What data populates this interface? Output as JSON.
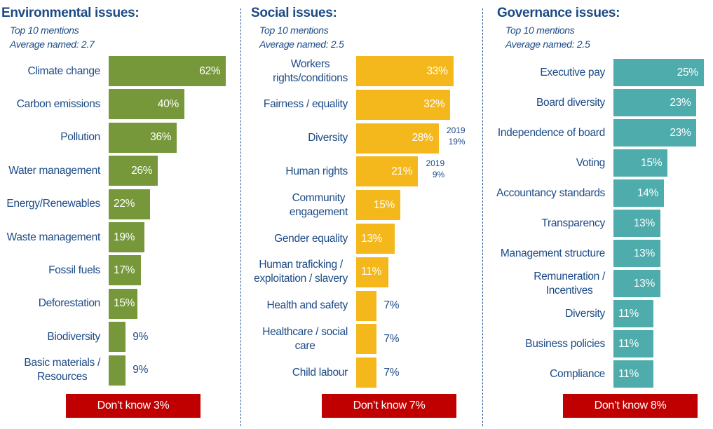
{
  "chart_data": [
    {
      "type": "bar",
      "orientation": "horizontal",
      "title": "Environmental issues:",
      "subtitle_lines": [
        "Top 10 mentions",
        "Average named: 2.7"
      ],
      "color": "#76983a",
      "categories": [
        "Climate change",
        "Carbon emissions",
        "Pollution",
        "Water management",
        "Energy/Renewables",
        "Waste management",
        "Fossil fuels",
        "Deforestation",
        "Biodiversity",
        "Basic materials / Resources"
      ],
      "label_lines": [
        [
          "Climate change"
        ],
        [
          "Carbon emissions"
        ],
        [
          "Pollution"
        ],
        [
          "Water management"
        ],
        [
          "Energy/Renewables"
        ],
        [
          "Waste management"
        ],
        [
          "Fossil fuels"
        ],
        [
          "Deforestation"
        ],
        [
          "Biodiversity"
        ],
        [
          "Basic materials /",
          "Resources"
        ]
      ],
      "values": [
        62,
        40,
        36,
        26,
        22,
        19,
        17,
        15,
        9,
        9
      ],
      "value_labels": [
        "62%",
        "40%",
        "36%",
        "26%",
        "22%",
        "19%",
        "17%",
        "15%",
        "9%",
        "9%"
      ],
      "notes": [
        null,
        null,
        null,
        null,
        null,
        null,
        null,
        null,
        null,
        null
      ],
      "dont_know": "Don’t know 3%",
      "unit": "%"
    },
    {
      "type": "bar",
      "orientation": "horizontal",
      "title": "Social issues:",
      "subtitle_lines": [
        "Top 10 mentions",
        "Average named: 2.5"
      ],
      "color": "#f5b81c",
      "categories": [
        "Workers rights/conditions",
        "Fairness / equality",
        "Diversity",
        "Human rights",
        "Community engagement",
        "Gender equality",
        "Human traficking / exploitation / slavery",
        "Health and safety",
        "Healthcare / social care",
        "Child labour"
      ],
      "label_lines": [
        [
          "Workers",
          "rights/conditions"
        ],
        [
          "Fairness / equality"
        ],
        [
          "Diversity"
        ],
        [
          "Human rights"
        ],
        [
          "Community",
          "engagement"
        ],
        [
          "Gender equality"
        ],
        [
          "Human traficking /",
          "exploitation / slavery"
        ],
        [
          "Health and safety"
        ],
        [
          "Healthcare / social",
          "care"
        ],
        [
          "Child labour"
        ]
      ],
      "values": [
        33,
        32,
        28,
        21,
        15,
        13,
        11,
        7,
        7,
        7
      ],
      "value_labels": [
        "33%",
        "32%",
        "28%",
        "21%",
        "15%",
        "13%",
        "11%",
        "7%",
        "7%",
        "7%"
      ],
      "notes": [
        null,
        null,
        [
          "2019",
          "19%"
        ],
        [
          "2019",
          "9%"
        ],
        null,
        null,
        null,
        null,
        null,
        null
      ],
      "dont_know": "Don’t know 7%",
      "unit": "%"
    },
    {
      "type": "bar",
      "orientation": "horizontal",
      "title": "Governance issues:",
      "subtitle_lines": [
        "Top 10 mentions",
        "Average named: 2.5"
      ],
      "color": "#4eacac",
      "categories": [
        "Executive pay",
        "Board diversity",
        "Independence of board",
        "Voting",
        "Accountancy standards",
        "Transparency",
        "Management structure",
        "Remuneration / Incentives",
        "Diversity",
        "Business policies",
        "Compliance"
      ],
      "label_lines": [
        [
          "Executive pay"
        ],
        [
          "Board diversity"
        ],
        [
          "Independence of board"
        ],
        [
          "Voting"
        ],
        [
          "Accountancy standards"
        ],
        [
          "Transparency"
        ],
        [
          "Management structure"
        ],
        [
          "Remuneration /",
          "Incentives"
        ],
        [
          "Diversity"
        ],
        [
          "Business policies"
        ],
        [
          "Compliance"
        ]
      ],
      "values": [
        25,
        23,
        23,
        15,
        14,
        13,
        13,
        13,
        11,
        11,
        11
      ],
      "value_labels": [
        "25%",
        "23%",
        "23%",
        "15%",
        "14%",
        "13%",
        "13%",
        "13%",
        "11%",
        "11%",
        "11%"
      ],
      "notes": [
        null,
        null,
        null,
        null,
        null,
        null,
        null,
        null,
        null,
        null,
        null
      ],
      "dont_know": "Don’t know 8%",
      "unit": "%"
    }
  ]
}
